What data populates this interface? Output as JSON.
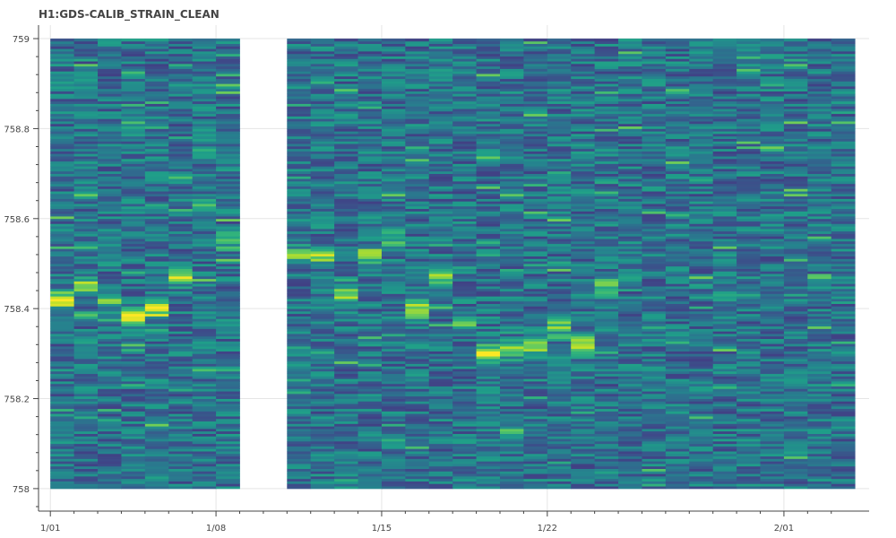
{
  "chart_data": {
    "type": "heatmap",
    "title": "H1:GDS-CALIB_STRAIN_CLEAN",
    "xlabel": "",
    "ylabel": "",
    "x_axis": {
      "type": "date",
      "tick_labels": [
        "1/01",
        "1/08",
        "1/15",
        "1/22",
        "2/01"
      ],
      "tick_days": [
        0,
        7,
        14,
        21,
        31
      ],
      "xlim_days": [
        -0.5,
        34.6
      ]
    },
    "ylim": [
      757.95,
      759.03
    ],
    "y_ticks": [
      758,
      758.2,
      758.4,
      758.6,
      758.8,
      759
    ],
    "y_tick_labels": [
      "758",
      "758.2",
      "758.4",
      "758.6",
      "758.8",
      "759"
    ],
    "grid": true,
    "colormap": "viridis",
    "colors": {
      "background": "#ffffff",
      "grid": "#e5e5e5",
      "axis": "#444444",
      "gap": "#ffffff"
    },
    "columns_days": [
      0,
      1,
      2,
      3,
      4,
      5,
      6,
      7,
      10,
      11,
      12,
      13,
      14,
      15,
      16,
      17,
      18,
      19,
      20,
      21,
      22,
      23,
      24,
      25,
      26,
      27,
      28,
      29,
      30,
      31,
      32,
      33
    ],
    "peak_frequency": [
      758.42,
      758.45,
      758.42,
      758.38,
      758.4,
      758.47,
      758.63,
      758.55,
      758.52,
      758.52,
      758.43,
      758.52,
      758.56,
      758.4,
      758.47,
      758.37,
      758.3,
      758.31,
      758.32,
      758.36,
      758.32,
      758.45,
      758.48,
      758.5,
      758.47,
      758.45,
      758.44,
      758.46,
      758.45,
      758.43,
      758.45,
      758.44
    ],
    "peak_strength": [
      0.9,
      0.55,
      0.65,
      0.9,
      0.8,
      0.7,
      0.55,
      0.45,
      0.55,
      0.7,
      0.65,
      0.7,
      0.55,
      0.85,
      0.6,
      0.55,
      0.95,
      0.8,
      0.85,
      0.55,
      0.8,
      0.45,
      0.1,
      0.08,
      0.08,
      0.08,
      0.08,
      0.08,
      0.08,
      0.08,
      0.08,
      0.08
    ]
  }
}
